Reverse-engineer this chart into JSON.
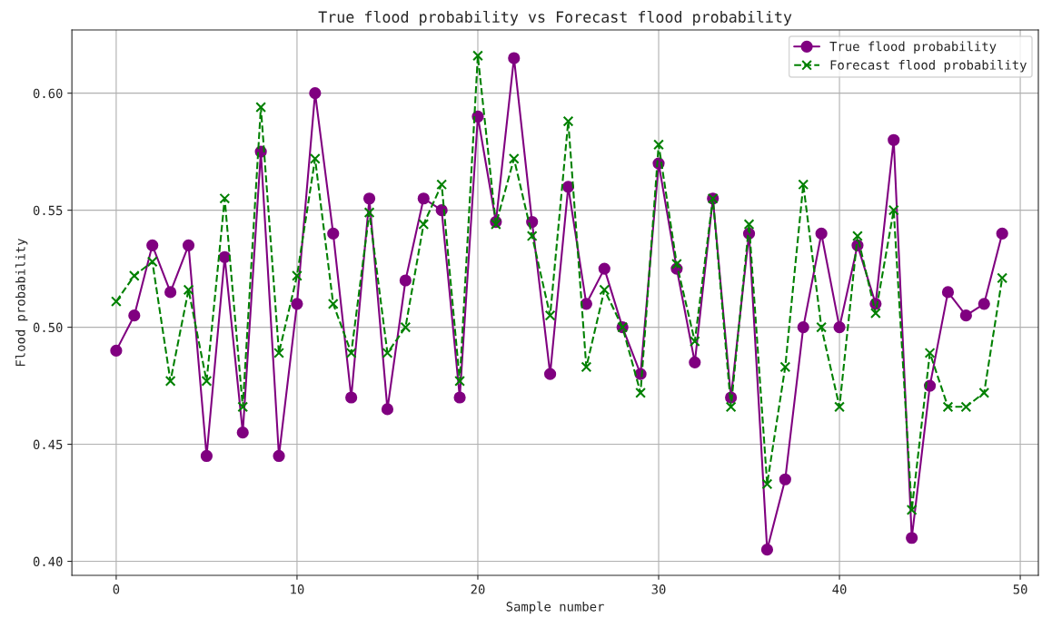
{
  "chart_data": {
    "type": "line",
    "title": "True flood probability vs Forecast flood probability",
    "xlabel": "Sample number",
    "ylabel": "Flood probability",
    "x": [
      0,
      1,
      2,
      3,
      4,
      5,
      6,
      7,
      8,
      9,
      10,
      11,
      12,
      13,
      14,
      15,
      16,
      17,
      18,
      19,
      20,
      21,
      22,
      23,
      24,
      25,
      26,
      27,
      28,
      29,
      30,
      31,
      32,
      33,
      34,
      35,
      36,
      37,
      38,
      39,
      40,
      41,
      42,
      43,
      44,
      45,
      46,
      47,
      48,
      49
    ],
    "series": [
      {
        "name": "True flood probability",
        "color": "#800080",
        "marker": "circle",
        "line_style": "solid",
        "values": [
          0.49,
          0.505,
          0.535,
          0.515,
          0.535,
          0.445,
          0.53,
          0.455,
          0.575,
          0.445,
          0.51,
          0.6,
          0.54,
          0.47,
          0.555,
          0.465,
          0.52,
          0.555,
          0.55,
          0.47,
          0.59,
          0.545,
          0.615,
          0.545,
          0.48,
          0.56,
          0.51,
          0.525,
          0.5,
          0.48,
          0.57,
          0.525,
          0.485,
          0.555,
          0.47,
          0.54,
          0.405,
          0.435,
          0.5,
          0.54,
          0.5,
          0.535,
          0.51,
          0.58,
          0.41,
          0.475,
          0.515,
          0.505,
          0.51,
          0.54
        ]
      },
      {
        "name": "Forecast flood probability",
        "color": "#008000",
        "marker": "cross",
        "line_style": "dashed",
        "values": [
          0.511,
          0.522,
          0.528,
          0.477,
          0.516,
          0.477,
          0.555,
          0.466,
          0.594,
          0.489,
          0.522,
          0.572,
          0.51,
          0.489,
          0.549,
          0.489,
          0.5,
          0.544,
          0.561,
          0.477,
          0.616,
          0.544,
          0.572,
          0.539,
          0.505,
          0.588,
          0.483,
          0.516,
          0.5,
          0.472,
          0.578,
          0.527,
          0.494,
          0.555,
          0.466,
          0.544,
          0.433,
          0.483,
          0.561,
          0.5,
          0.466,
          0.539,
          0.506,
          0.55,
          0.422,
          0.489,
          0.466,
          0.466,
          0.472,
          0.521
        ]
      }
    ],
    "xlim": [
      -2.45,
      51.0
    ],
    "ylim": [
      0.394,
      0.627
    ],
    "xticks": [
      0,
      10,
      20,
      30,
      40,
      50
    ],
    "yticks": [
      {
        "value": 0.4,
        "label": "0.40"
      },
      {
        "value": 0.45,
        "label": "0.45"
      },
      {
        "value": 0.5,
        "label": "0.50"
      },
      {
        "value": 0.55,
        "label": "0.55"
      },
      {
        "value": 0.6,
        "label": "0.60"
      }
    ],
    "grid": true,
    "legend": "top right"
  }
}
